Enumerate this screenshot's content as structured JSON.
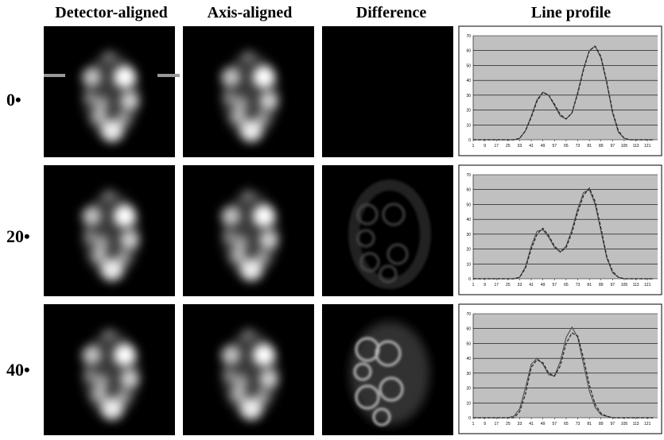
{
  "figure": {
    "column_headers": [
      "Detector-aligned",
      "Axis-aligned",
      "Difference",
      "Line profile"
    ],
    "row_labels": [
      "0•",
      "20•",
      "40•"
    ]
  },
  "chart_data": [
    {
      "type": "line",
      "x": [
        1,
        5,
        9,
        13,
        17,
        21,
        25,
        29,
        33,
        37,
        41,
        45,
        49,
        53,
        57,
        61,
        65,
        69,
        73,
        77,
        81,
        85,
        89,
        93,
        97,
        101,
        105,
        109,
        113,
        117,
        121,
        125
      ],
      "series": [
        {
          "color": "#555555",
          "dashed": false,
          "values": [
            0,
            0,
            0,
            0,
            0,
            0,
            0,
            0,
            1,
            6,
            16,
            27,
            32,
            30,
            23,
            16,
            14,
            18,
            32,
            48,
            60,
            63,
            55,
            38,
            18,
            5,
            1,
            0,
            0,
            0,
            0,
            0
          ]
        },
        {
          "color": "#222222",
          "dashed": true,
          "values": [
            0,
            0,
            0,
            0,
            0,
            0,
            0,
            0,
            1,
            6,
            15,
            26,
            32,
            30,
            24,
            17,
            14,
            18,
            31,
            47,
            60,
            63,
            56,
            39,
            19,
            6,
            1,
            0,
            0,
            0,
            0,
            0
          ]
        }
      ],
      "xlim": [
        1,
        128
      ],
      "xticks": [
        1,
        9,
        17,
        25,
        33,
        41,
        49,
        57,
        65,
        73,
        81,
        89,
        97,
        105,
        113,
        121
      ],
      "ylim": [
        0,
        70
      ],
      "yticks": [
        0,
        10,
        20,
        30,
        40,
        50,
        60,
        70
      ],
      "grid": true
    },
    {
      "type": "line",
      "x": [
        1,
        5,
        9,
        13,
        17,
        21,
        25,
        29,
        33,
        37,
        41,
        45,
        49,
        53,
        57,
        61,
        65,
        69,
        73,
        77,
        81,
        85,
        89,
        93,
        97,
        101,
        105,
        109,
        113,
        117,
        121,
        125
      ],
      "series": [
        {
          "color": "#555555",
          "dashed": false,
          "values": [
            0,
            0,
            0,
            0,
            0,
            0,
            0,
            0,
            1,
            8,
            22,
            32,
            33,
            28,
            21,
            18,
            22,
            33,
            47,
            58,
            60,
            50,
            32,
            14,
            4,
            1,
            0,
            0,
            0,
            0,
            0,
            0
          ]
        },
        {
          "color": "#222222",
          "dashed": true,
          "values": [
            0,
            0,
            0,
            0,
            0,
            0,
            0,
            0,
            1,
            7,
            20,
            30,
            34,
            29,
            22,
            18,
            21,
            31,
            45,
            56,
            61,
            52,
            34,
            15,
            5,
            1,
            0,
            0,
            0,
            0,
            0,
            0
          ]
        }
      ],
      "xlim": [
        1,
        128
      ],
      "xticks": [
        1,
        9,
        17,
        25,
        33,
        41,
        49,
        57,
        65,
        73,
        81,
        89,
        97,
        105,
        113,
        121
      ],
      "ylim": [
        0,
        70
      ],
      "yticks": [
        0,
        10,
        20,
        30,
        40,
        50,
        60,
        70
      ],
      "grid": true
    },
    {
      "type": "line",
      "x": [
        1,
        5,
        9,
        13,
        17,
        21,
        25,
        29,
        33,
        37,
        41,
        45,
        49,
        53,
        57,
        61,
        65,
        69,
        73,
        77,
        81,
        85,
        89,
        93,
        97,
        101,
        105,
        109,
        113,
        117,
        121,
        125
      ],
      "series": [
        {
          "color": "#555555",
          "dashed": false,
          "values": [
            0,
            0,
            0,
            0,
            0,
            0,
            0,
            1,
            6,
            20,
            36,
            40,
            36,
            29,
            28,
            38,
            54,
            61,
            54,
            36,
            18,
            7,
            2,
            1,
            0,
            0,
            0,
            0,
            0,
            0,
            0,
            0
          ]
        },
        {
          "color": "#222222",
          "dashed": true,
          "values": [
            0,
            0,
            0,
            0,
            0,
            0,
            0,
            0,
            4,
            16,
            34,
            39,
            37,
            30,
            28,
            35,
            50,
            57,
            55,
            40,
            22,
            9,
            3,
            1,
            0,
            0,
            0,
            0,
            0,
            0,
            0,
            0
          ]
        }
      ],
      "xlim": [
        1,
        128
      ],
      "xticks": [
        1,
        9,
        17,
        25,
        33,
        41,
        49,
        57,
        65,
        73,
        81,
        89,
        97,
        105,
        113,
        121
      ],
      "ylim": [
        0,
        70
      ],
      "yticks": [
        0,
        10,
        20,
        30,
        40,
        50,
        60,
        70
      ],
      "grid": true
    }
  ]
}
